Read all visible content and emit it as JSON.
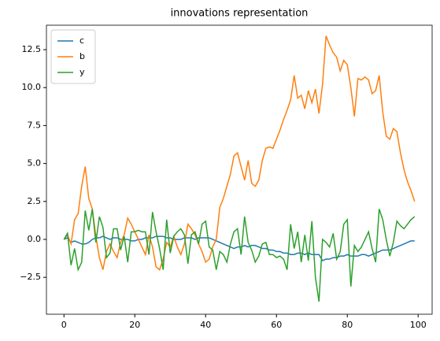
{
  "chart_data": {
    "type": "line",
    "title": "innovations representation",
    "x": [
      0,
      1,
      2,
      3,
      4,
      5,
      6,
      7,
      8,
      9,
      10,
      11,
      12,
      13,
      14,
      15,
      16,
      17,
      18,
      19,
      20,
      21,
      22,
      23,
      24,
      25,
      26,
      27,
      28,
      29,
      30,
      31,
      32,
      33,
      34,
      35,
      36,
      37,
      38,
      39,
      40,
      41,
      42,
      43,
      44,
      45,
      46,
      47,
      48,
      49,
      50,
      51,
      52,
      53,
      54,
      55,
      56,
      57,
      58,
      59,
      60,
      61,
      62,
      63,
      64,
      65,
      66,
      67,
      68,
      69,
      70,
      71,
      72,
      73,
      74,
      75,
      76,
      77,
      78,
      79,
      80,
      81,
      82,
      83,
      84,
      85,
      86,
      87,
      88,
      89,
      90,
      91,
      92,
      93,
      94,
      95,
      96,
      97,
      98,
      99
    ],
    "series": [
      {
        "name": "c",
        "color": "#1f77b4",
        "values": [
          0,
          0.1,
          -0.2,
          -0.1,
          -0.2,
          -0.3,
          -0.3,
          -0.2,
          0.0,
          0.1,
          0.1,
          0.2,
          0.1,
          0.0,
          0.1,
          0.1,
          0.0,
          0.0,
          0.0,
          -0.1,
          -0.1,
          0.0,
          0.0,
          0.1,
          0.1,
          0.1,
          0.2,
          0.2,
          0.2,
          0.1,
          0.1,
          0.0,
          0.0,
          0.0,
          0.1,
          0.1,
          0.1,
          0.0,
          0.1,
          0.1,
          0.1,
          0.1,
          0.0,
          -0.1,
          -0.2,
          -0.3,
          -0.4,
          -0.5,
          -0.6,
          -0.5,
          -0.5,
          -0.4,
          -0.5,
          -0.4,
          -0.4,
          -0.5,
          -0.6,
          -0.6,
          -0.7,
          -0.7,
          -0.8,
          -0.8,
          -0.9,
          -0.9,
          -1.0,
          -1.0,
          -0.9,
          -0.9,
          -1.0,
          -0.9,
          -1.0,
          -1.0,
          -1.0,
          -1.4,
          -1.3,
          -1.3,
          -1.2,
          -1.2,
          -1.1,
          -1.1,
          -1.0,
          -1.1,
          -1.1,
          -1.1,
          -1.0,
          -1.0,
          -1.1,
          -1.0,
          -0.9,
          -0.8,
          -0.7,
          -0.7,
          -0.7,
          -0.6,
          -0.5,
          -0.4,
          -0.3,
          -0.2,
          -0.1,
          -0.1
        ]
      },
      {
        "name": "b",
        "color": "#ff7f0e",
        "values": [
          0,
          0.3,
          -0.3,
          1.3,
          1.7,
          3.5,
          4.8,
          2.7,
          2.0,
          0.2,
          -1.2,
          -2.0,
          -0.8,
          -0.3,
          -0.8,
          -1.2,
          -0.2,
          0.3,
          1.4,
          1.0,
          0.5,
          0.0,
          -0.5,
          -1.0,
          0.3,
          -0.5,
          -1.8,
          -2.0,
          -1.3,
          -0.2,
          -0.5,
          0.2,
          -0.5,
          -1.0,
          -0.3,
          1.0,
          0.7,
          0.3,
          -0.3,
          -0.8,
          -1.5,
          -1.3,
          -0.5,
          0.0,
          2.1,
          2.7,
          3.5,
          4.3,
          5.5,
          5.7,
          4.8,
          3.9,
          5.2,
          3.7,
          3.5,
          3.9,
          5.2,
          6.0,
          6.1,
          6.0,
          6.6,
          7.2,
          7.9,
          8.5,
          9.2,
          10.8,
          9.3,
          9.5,
          8.6,
          9.8,
          9.0,
          9.9,
          8.3,
          10.2,
          13.4,
          12.8,
          12.3,
          12.0,
          11.1,
          11.8,
          11.5,
          10.0,
          8.1,
          10.6,
          10.5,
          10.7,
          10.5,
          9.6,
          9.8,
          10.8,
          8.4,
          6.8,
          6.6,
          7.3,
          7.1,
          5.7,
          4.6,
          3.8,
          3.2,
          2.5
        ]
      },
      {
        "name": "y",
        "color": "#2ca02c",
        "values": [
          0,
          0.4,
          -1.7,
          -0.6,
          -2.0,
          -1.5,
          1.9,
          0.6,
          2.0,
          -0.2,
          1.5,
          0.8,
          -1.2,
          -0.9,
          0.7,
          0.7,
          -0.7,
          0.2,
          -1.5,
          0.5,
          0.5,
          0.6,
          0.5,
          0.5,
          -1.0,
          1.8,
          0.5,
          -0.6,
          -2.0,
          1.3,
          -0.9,
          0.2,
          0.5,
          0.7,
          0.3,
          -1.6,
          0.3,
          0.5,
          -0.3,
          1.0,
          1.2,
          -0.5,
          -0.7,
          -2.0,
          -0.8,
          -1.0,
          -1.5,
          -0.3,
          0.5,
          0.7,
          -1.0,
          1.5,
          -0.2,
          -0.7,
          -1.5,
          -1.1,
          -0.3,
          -0.2,
          -1.0,
          -1.0,
          -1.2,
          -1.1,
          -1.3,
          -2.0,
          1.0,
          -0.6,
          0.5,
          -1.5,
          0.3,
          -1.4,
          1.2,
          -2.5,
          -4.1,
          0.0,
          -0.2,
          -0.5,
          0.4,
          -1.3,
          -0.8,
          1.0,
          1.3,
          -3.1,
          -0.4,
          -0.8,
          -0.5,
          0.0,
          0.5,
          -0.6,
          -1.5,
          2.0,
          1.3,
          0.0,
          -1.1,
          -0.2,
          1.2,
          0.9,
          0.7,
          1.0,
          1.3,
          1.5
        ]
      }
    ],
    "xlim": [
      -4.95,
      103.95
    ],
    "xticks": [
      0,
      20,
      40,
      60,
      80,
      100
    ],
    "ylim": [
      -4.93,
      14.11
    ],
    "yticks": [
      {
        "value": -2.5,
        "label": "−2.5"
      },
      {
        "value": 0,
        "label": "0.0"
      },
      2.5,
      {
        "value": 5,
        "label": "5.0"
      },
      7.5,
      {
        "value": 10,
        "label": "10.0"
      },
      12.5
    ],
    "legend": "upper left",
    "grid": false
  }
}
